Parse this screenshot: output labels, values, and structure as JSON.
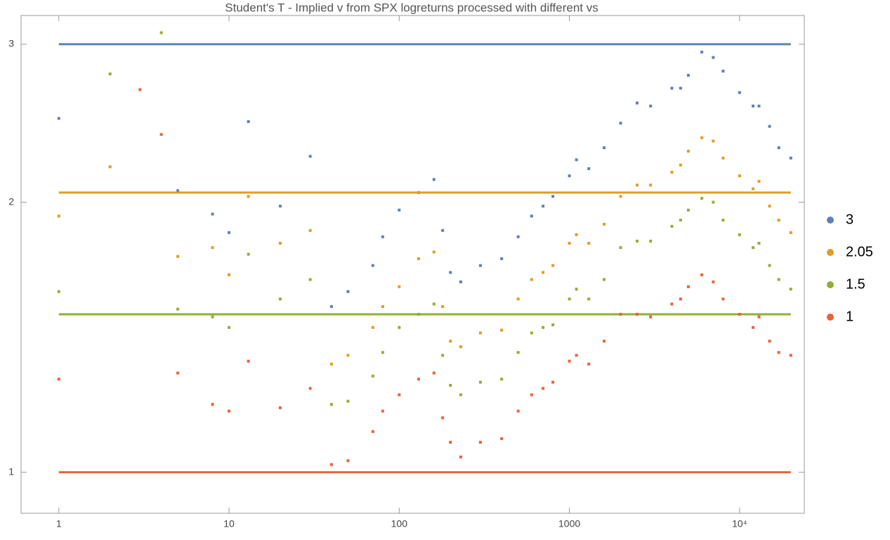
{
  "chart_data": {
    "type": "scatter",
    "title": "Student's T - Implied v from SPX logreturns processed with different vs",
    "x": [
      1,
      2,
      3,
      4,
      5,
      8,
      10,
      13,
      20,
      30,
      40,
      50,
      70,
      80,
      100,
      130,
      160,
      180,
      200,
      230,
      300,
      400,
      500,
      600,
      700,
      800,
      1000,
      1100,
      1300,
      1600,
      2000,
      2500,
      3000,
      4000,
      4500,
      5000,
      6000,
      7000,
      8000,
      10000,
      12000,
      13000,
      15000,
      17000,
      20000
    ],
    "series": [
      {
        "name": "3",
        "color": "#5e81b5",
        "level": 3,
        "values": [
          2.48,
          null,
          null,
          null,
          2.06,
          1.94,
          1.85,
          2.46,
          1.98,
          2.25,
          1.53,
          1.59,
          1.7,
          1.83,
          1.96,
          2.05,
          2.12,
          1.86,
          1.67,
          1.63,
          1.7,
          1.73,
          1.83,
          1.93,
          1.98,
          2.03,
          2.14,
          2.23,
          2.18,
          2.3,
          2.45,
          2.58,
          2.56,
          2.68,
          2.68,
          2.77,
          2.94,
          2.9,
          2.8,
          2.65,
          2.56,
          2.56,
          2.43,
          2.3,
          2.24
        ]
      },
      {
        "name": "2.05",
        "color": "#e19c24",
        "level": 2.05,
        "values": [
          1.93,
          2.19,
          null,
          null,
          1.74,
          1.78,
          1.66,
          2.03,
          1.8,
          1.86,
          1.32,
          1.35,
          1.45,
          1.53,
          1.61,
          1.73,
          1.76,
          1.53,
          1.4,
          1.38,
          1.43,
          1.44,
          1.56,
          1.64,
          1.67,
          1.7,
          1.8,
          1.84,
          1.8,
          1.89,
          2.03,
          2.09,
          2.09,
          2.16,
          2.2,
          2.28,
          2.36,
          2.34,
          2.24,
          2.14,
          2.07,
          2.11,
          1.98,
          1.91,
          1.85
        ]
      },
      {
        "name": "1.5",
        "color": "#8fb032",
        "level": 1.5,
        "values": [
          1.59,
          2.78,
          null,
          3.09,
          1.52,
          1.49,
          1.45,
          1.75,
          1.56,
          1.64,
          1.19,
          1.2,
          1.28,
          1.36,
          1.45,
          1.5,
          1.54,
          1.35,
          1.25,
          1.22,
          1.26,
          1.27,
          1.36,
          1.43,
          1.45,
          1.46,
          1.56,
          1.6,
          1.56,
          1.64,
          1.78,
          1.81,
          1.81,
          1.88,
          1.91,
          1.96,
          2.02,
          2.0,
          1.91,
          1.84,
          1.78,
          1.8,
          1.7,
          1.64,
          1.6
        ]
      },
      {
        "name": "1",
        "color": "#eb6235",
        "level": 1,
        "values": [
          1.27,
          null,
          2.67,
          2.38,
          1.29,
          1.19,
          1.17,
          1.33,
          1.18,
          1.24,
          1.02,
          1.03,
          1.11,
          1.17,
          1.22,
          1.27,
          1.29,
          1.15,
          1.08,
          1.04,
          1.08,
          1.09,
          1.17,
          1.22,
          1.24,
          1.26,
          1.33,
          1.35,
          1.32,
          1.4,
          1.5,
          1.5,
          1.49,
          1.54,
          1.56,
          1.61,
          1.66,
          1.63,
          1.56,
          1.5,
          1.45,
          1.49,
          1.4,
          1.36,
          1.35
        ]
      }
    ],
    "xlim": [
      0.6,
      24000
    ],
    "ylim": [
      0.9,
      3.23
    ],
    "xticks": [
      1,
      10,
      100,
      1000,
      {
        "value": 10000,
        "label": "10⁴"
      }
    ],
    "yticks": [
      1,
      2,
      3
    ],
    "xlog": true,
    "ylog": true,
    "legend": "right"
  }
}
